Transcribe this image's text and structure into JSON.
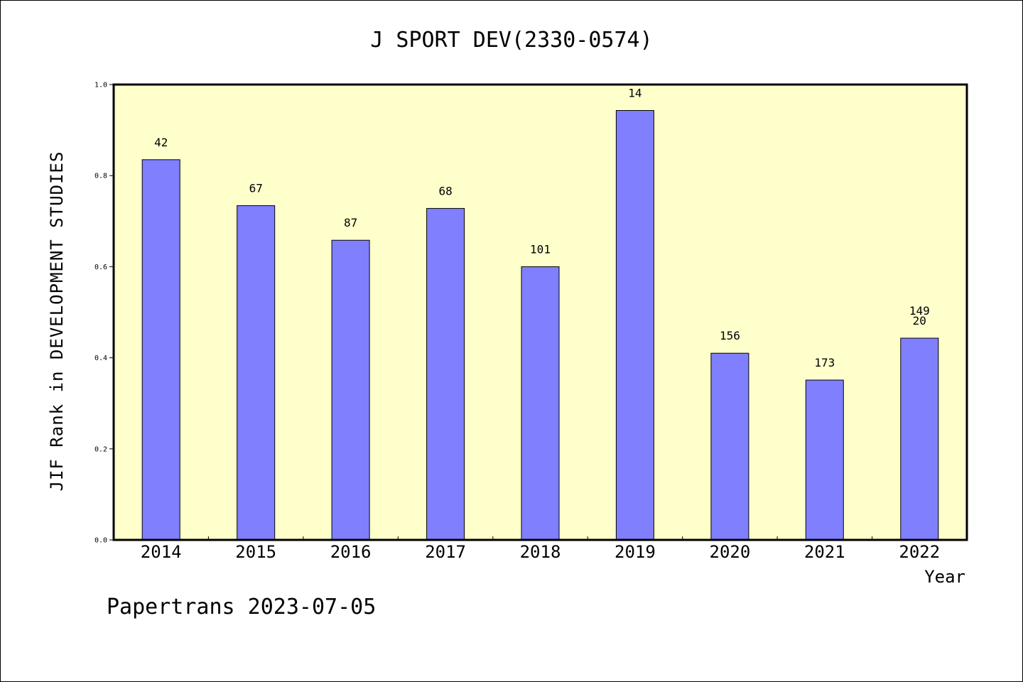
{
  "chart_data": {
    "type": "bar",
    "title": "J SPORT DEV(2330-0574)",
    "xlabel": "Year",
    "ylabel": "JIF Rank in DEVELOPMENT STUDIES",
    "ylim": [
      0,
      1.0
    ],
    "yticks": [
      "0.0",
      "0.2",
      "0.4",
      "0.6",
      "0.8",
      "1.0"
    ],
    "categories": [
      "2014",
      "2015",
      "2016",
      "2017",
      "2018",
      "2019",
      "2020",
      "2021",
      "2022"
    ],
    "values": [
      0.835,
      0.734,
      0.658,
      0.728,
      0.6,
      0.943,
      0.41,
      0.351,
      0.443
    ],
    "labels": [
      "42",
      "67",
      "87",
      "68",
      "101",
      "14",
      "156",
      "173",
      "149\n20"
    ],
    "colors": {
      "plot_background": "#ffffcc",
      "bar_fill": "#8080ff",
      "bar_stroke": "#000000"
    },
    "grid": false
  },
  "footer": "Papertrans 2023-07-05"
}
